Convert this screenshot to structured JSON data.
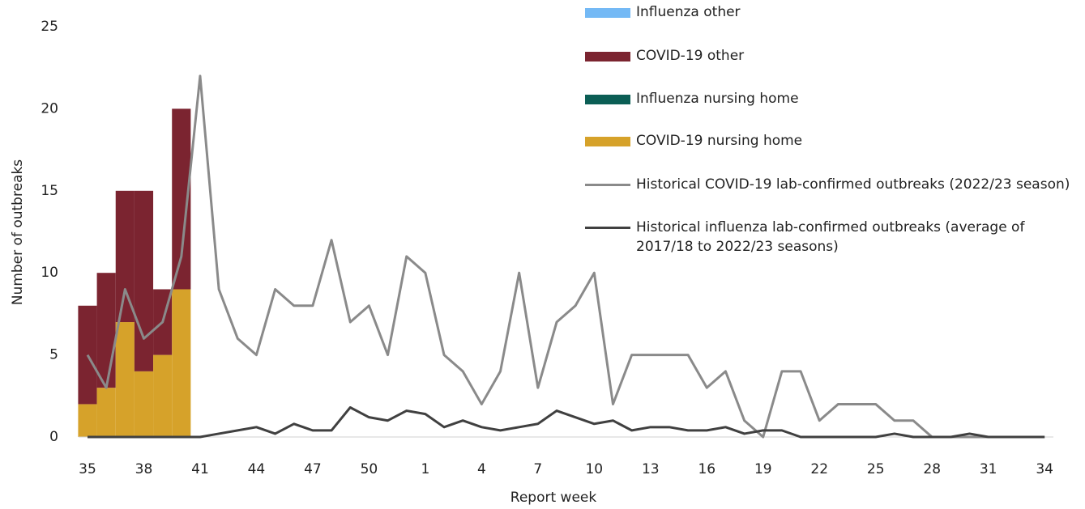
{
  "chart_data": {
    "type": "bar",
    "xlabel": "Report week",
    "ylabel": "Number of outbreaks",
    "categories": [
      "35",
      null,
      null,
      "38",
      null,
      null,
      "41",
      null,
      null,
      "44",
      null,
      null,
      "47",
      null,
      null,
      "50",
      null,
      null,
      "1",
      null,
      null,
      "4",
      null,
      null,
      "7",
      null,
      null,
      "10",
      null,
      null,
      "13",
      null,
      null,
      "16",
      null,
      null,
      "19",
      null,
      null,
      "22",
      null,
      null,
      "25",
      null,
      null,
      "28",
      null,
      null,
      "31",
      null,
      null,
      "34"
    ],
    "ylim": [
      0,
      25
    ],
    "yticks": [
      0,
      5,
      10,
      15,
      20,
      25
    ],
    "series": [
      {
        "name": "Influenza other",
        "type": "bar",
        "color": "#74b9f5",
        "values": [
          0,
          0,
          0,
          0,
          0,
          0,
          null,
          null,
          null,
          null,
          null,
          null,
          null,
          null,
          null,
          null,
          null,
          null,
          null,
          null,
          null,
          null,
          null,
          null,
          null,
          null,
          null,
          null,
          null,
          null,
          null,
          null,
          null,
          null,
          null,
          null,
          null,
          null,
          null,
          null,
          null,
          null,
          null,
          null,
          null,
          null,
          null,
          null,
          null,
          null,
          null,
          null
        ]
      },
      {
        "name": "COVID-19 other",
        "type": "bar",
        "color": "#7b2430",
        "values": [
          6,
          7,
          8,
          11,
          4,
          11,
          null,
          null,
          null,
          null,
          null,
          null,
          null,
          null,
          null,
          null,
          null,
          null,
          null,
          null,
          null,
          null,
          null,
          null,
          null,
          null,
          null,
          null,
          null,
          null,
          null,
          null,
          null,
          null,
          null,
          null,
          null,
          null,
          null,
          null,
          null,
          null,
          null,
          null,
          null,
          null,
          null,
          null,
          null,
          null,
          null,
          null
        ]
      },
      {
        "name": "Influenza nursing home",
        "type": "bar",
        "color": "#0b5e55",
        "values": [
          0,
          0,
          0,
          0,
          0,
          0,
          null,
          null,
          null,
          null,
          null,
          null,
          null,
          null,
          null,
          null,
          null,
          null,
          null,
          null,
          null,
          null,
          null,
          null,
          null,
          null,
          null,
          null,
          null,
          null,
          null,
          null,
          null,
          null,
          null,
          null,
          null,
          null,
          null,
          null,
          null,
          null,
          null,
          null,
          null,
          null,
          null,
          null,
          null,
          null,
          null,
          null
        ]
      },
      {
        "name": "COVID-19 nursing home",
        "type": "bar",
        "color": "#d6a22a",
        "values": [
          2,
          3,
          7,
          4,
          5,
          9,
          null,
          null,
          null,
          null,
          null,
          null,
          null,
          null,
          null,
          null,
          null,
          null,
          null,
          null,
          null,
          null,
          null,
          null,
          null,
          null,
          null,
          null,
          null,
          null,
          null,
          null,
          null,
          null,
          null,
          null,
          null,
          null,
          null,
          null,
          null,
          null,
          null,
          null,
          null,
          null,
          null,
          null,
          null,
          null,
          null,
          null
        ]
      },
      {
        "name": "Historical COVID-19 lab-confirmed outbreaks (2022/23 season)",
        "type": "line",
        "color": "#8a8a8a",
        "values": [
          5,
          3,
          9,
          6,
          7,
          11,
          22,
          9,
          6,
          5,
          9,
          8,
          8,
          12,
          7,
          8,
          5,
          11,
          10,
          5,
          4,
          2,
          4,
          10,
          3,
          7,
          8,
          10,
          2,
          5,
          5,
          5,
          5,
          3,
          4,
          1,
          0,
          4,
          4,
          1,
          2,
          2,
          2,
          1,
          1,
          0,
          0,
          0,
          0,
          0,
          0,
          0
        ]
      },
      {
        "name": "Historical influenza lab-confirmed outbreaks (average of 2017/18 to 2022/23 seasons)",
        "type": "line",
        "color": "#404040",
        "values": [
          0,
          0,
          0,
          0,
          0,
          0,
          0,
          0.2,
          0.4,
          0.6,
          0.2,
          0.8,
          0.4,
          0.4,
          1.8,
          1.2,
          1.0,
          1.6,
          1.4,
          0.6,
          1.0,
          0.6,
          0.4,
          0.6,
          0.8,
          1.6,
          1.2,
          0.8,
          1.0,
          0.4,
          0.6,
          0.6,
          0.4,
          0.4,
          0.6,
          0.2,
          0.4,
          0.4,
          0,
          0,
          0,
          0,
          0,
          0.2,
          0,
          0,
          0,
          0.2,
          0,
          0,
          0,
          0
        ]
      }
    ]
  }
}
